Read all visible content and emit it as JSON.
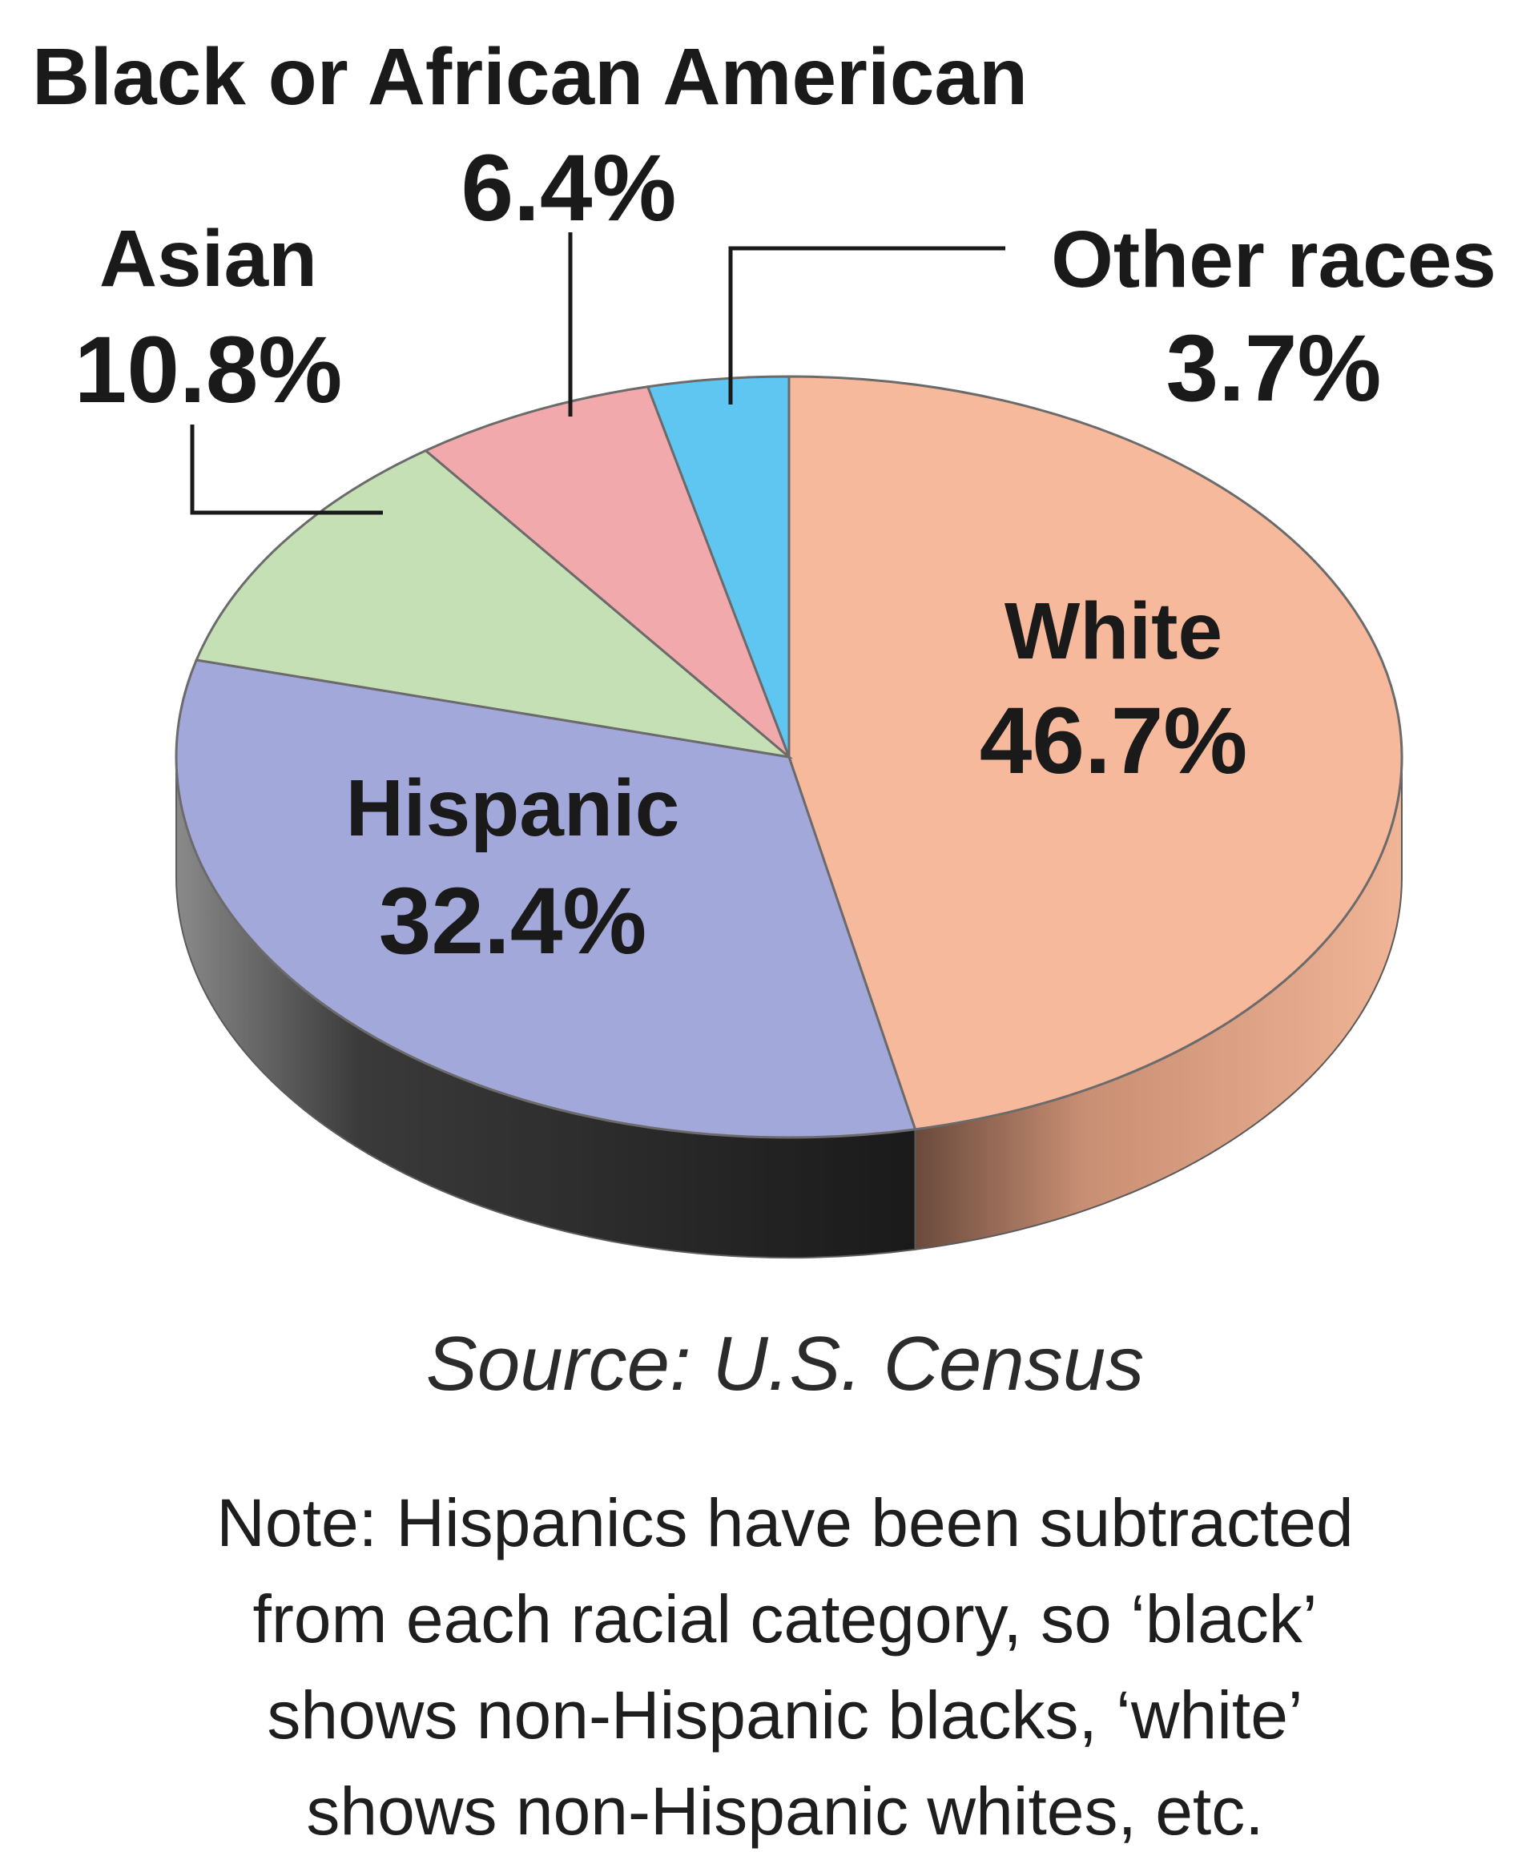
{
  "chart_data": {
    "type": "pie",
    "slices": [
      {
        "label": "White",
        "value": 46.7,
        "value_label": "46.7%",
        "color": "#F7B99B"
      },
      {
        "label": "Hispanic",
        "value": 32.4,
        "value_label": "32.4%",
        "color": "#A3A8DA"
      },
      {
        "label": "Asian",
        "value": 10.8,
        "value_label": "10.8%",
        "color": "#C6E0B6"
      },
      {
        "label": "Black or African American",
        "value": 6.4,
        "value_label": "6.4%",
        "color": "#F2A9AC"
      },
      {
        "label": "Other races",
        "value": 3.7,
        "value_label": "3.7%",
        "color": "#5EC6F0"
      }
    ],
    "source": "Source: U.S. Census",
    "note_lines": [
      "Note: Hispanics have been subtracted",
      "from each racial category, so ‘black’",
      "shows non-Hispanic blacks, ‘white’",
      "shows non-Hispanic whites, etc."
    ]
  }
}
